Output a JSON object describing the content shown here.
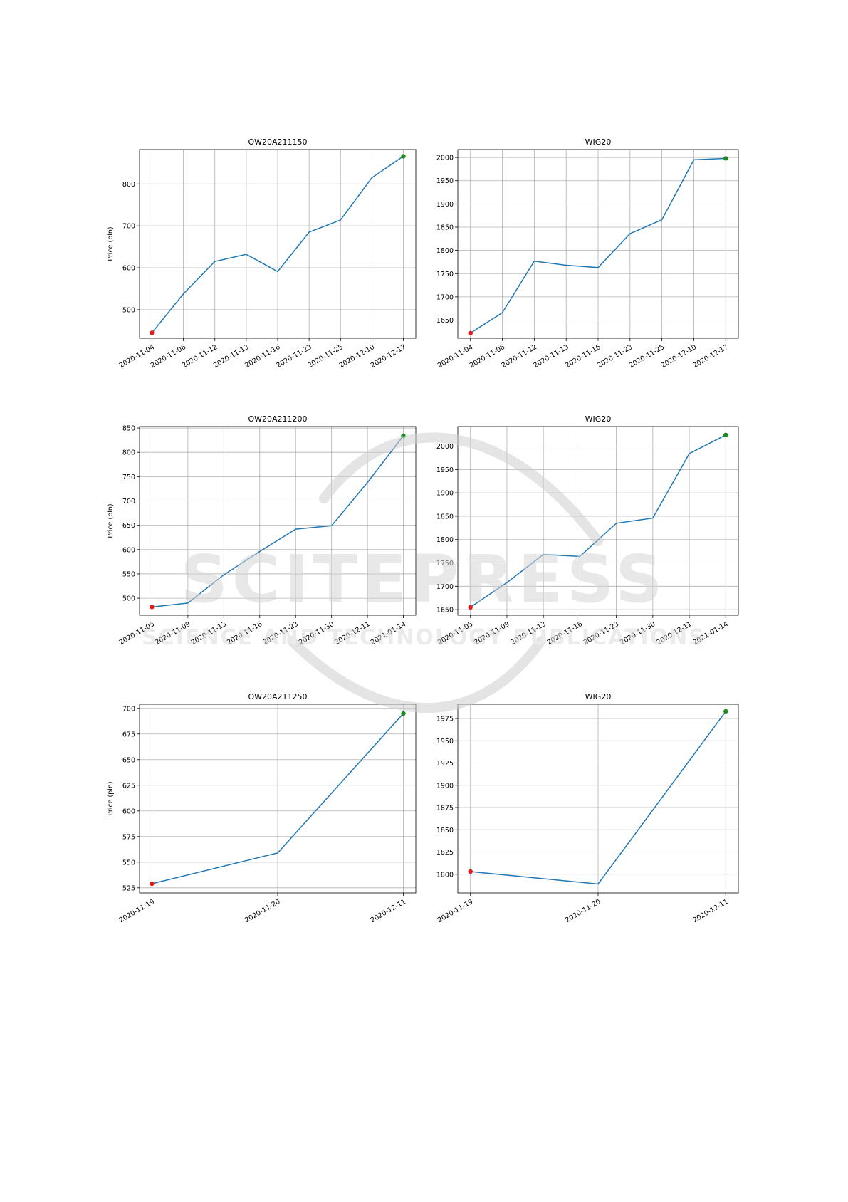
{
  "chart_data": [
    {
      "type": "line",
      "title": "OW20A211150",
      "ylabel": "Price (pln)",
      "categories": [
        "2020-11-04",
        "2020-11-06",
        "2020-11-12",
        "2020-11-13",
        "2020-11-16",
        "2020-11-23",
        "2020-11-25",
        "2020-12-10",
        "2020-12-17"
      ],
      "values": [
        445,
        538,
        615,
        632,
        591,
        685,
        714,
        815,
        866
      ],
      "yticks": [
        500,
        600,
        700,
        800
      ],
      "ylim": [
        432,
        882
      ],
      "markers": {
        "first_color": "#e8191a",
        "last_color": "#1a8a1a"
      },
      "grid": true
    },
    {
      "type": "line",
      "title": "WIG20",
      "ylabel": "",
      "categories": [
        "2020-11-04",
        "2020-11-06",
        "2020-11-12",
        "2020-11-13",
        "2020-11-16",
        "2020-11-23",
        "2020-11-25",
        "2020-12-10",
        "2020-12-17"
      ],
      "values": [
        1622,
        1666,
        1777,
        1768,
        1763,
        1836,
        1866,
        1995,
        1998
      ],
      "yticks": [
        1650,
        1700,
        1750,
        1800,
        1850,
        1900,
        1950,
        2000
      ],
      "ylim": [
        1611,
        2017
      ],
      "markers": {
        "first_color": "#e8191a",
        "last_color": "#1a8a1a"
      },
      "grid": true
    },
    {
      "type": "line",
      "title": "OW20A211200",
      "ylabel": "Price (pln)",
      "categories": [
        "2020-11-05",
        "2020-11-09",
        "2020-11-13",
        "2020-11-16",
        "2020-11-23",
        "2020-11-30",
        "2020-12-11",
        "2021-01-14"
      ],
      "values": [
        482,
        490,
        548,
        596,
        642,
        649,
        738,
        834
      ],
      "yticks": [
        500,
        550,
        600,
        650,
        700,
        750,
        800,
        850
      ],
      "ylim": [
        465,
        853
      ],
      "markers": {
        "first_color": "#e8191a",
        "last_color": "#1a8a1a"
      },
      "grid": true
    },
    {
      "type": "line",
      "title": "WIG20",
      "ylabel": "",
      "categories": [
        "2020-11-05",
        "2020-11-09",
        "2020-11-13",
        "2020-11-16",
        "2020-11-23",
        "2020-11-30",
        "2020-12-11",
        "2021-01-14"
      ],
      "values": [
        1655,
        1708,
        1768,
        1764,
        1835,
        1846,
        1984,
        2024
      ],
      "yticks": [
        1650,
        1700,
        1750,
        1800,
        1850,
        1900,
        1950,
        2000
      ],
      "ylim": [
        1638,
        2042
      ],
      "markers": {
        "first_color": "#e8191a",
        "last_color": "#1a8a1a"
      },
      "grid": true
    },
    {
      "type": "line",
      "title": "OW20A211250",
      "ylabel": "Price (pln)",
      "categories": [
        "2020-11-19",
        "2020-11-20",
        "2020-12-11"
      ],
      "values": [
        529,
        559,
        695
      ],
      "yticks": [
        525,
        550,
        575,
        600,
        625,
        650,
        675,
        700
      ],
      "ylim": [
        520,
        704
      ],
      "markers": {
        "first_color": "#e8191a",
        "last_color": "#1a8a1a"
      },
      "grid": true
    },
    {
      "type": "line",
      "title": "WIG20",
      "ylabel": "",
      "categories": [
        "2020-11-19",
        "2020-11-20",
        "2020-12-11"
      ],
      "values": [
        1803,
        1789,
        1983
      ],
      "yticks": [
        1800,
        1825,
        1850,
        1875,
        1900,
        1925,
        1950,
        1975
      ],
      "ylim": [
        1779,
        1991
      ],
      "markers": {
        "first_color": "#e8191a",
        "last_color": "#1a8a1a"
      },
      "grid": true
    }
  ],
  "watermark": {
    "big": "SCITEPRESS",
    "small": "SCIENCE AND TECHNOLOGY PUBLICATIONS",
    "color": "#d8d8d8"
  }
}
